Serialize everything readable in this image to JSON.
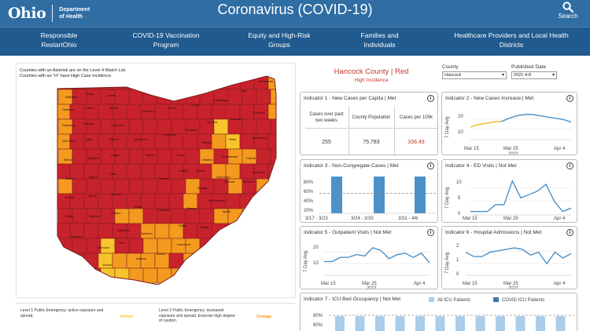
{
  "header": {
    "logo_text": "Ohio",
    "dept_text": "Department\nof Health",
    "site_title": "Coronavirus (COVID-19)",
    "search_label": "Search"
  },
  "nav": [
    {
      "label": "Responsible\nRestartOhio"
    },
    {
      "label": "COVID-19 Vaccination\nProgram"
    },
    {
      "label": "Equity and High-Risk\nGroups"
    },
    {
      "label": "Families and\nIndividuals"
    },
    {
      "label": "Healthcare Providers and Local Health\nDistricts"
    }
  ],
  "map": {
    "note_line1": "Counties with an Asterisk are on the Level 4 Watch List.",
    "note_line2": "Counties with an \"H\" have High Case Incidence.",
    "colors": {
      "red": "#c8222d",
      "orange": "#f39a1f",
      "yellow": "#f7c52b",
      "border": "#7a1a1a"
    }
  },
  "legend": {
    "level1_text": "Level 1 Public Emergency: active exposure and spread.",
    "level1_color_label": "Yellow",
    "level2_text": "Level 2 Public Emergency: increased exposure and spread. Exercise high degree of caution.",
    "level2_color_label": "Orange"
  },
  "county": {
    "title": "Hancock County | Red",
    "subtitle": "High Incidence"
  },
  "filters": {
    "county_label": "County",
    "county_value": "Hancock",
    "published_label": "Published Date",
    "published_value": "2021-4-8"
  },
  "indicators": {
    "ind1": {
      "title": "Indicator 1 - New Cases per Capita | Met",
      "col1_header": "Cases over past two weeks",
      "col2_header": "County Population",
      "col3_header": "Cases per 100k",
      "col1_value": "255",
      "col2_value": "75,783",
      "col3_value": "336.49",
      "col3_color": "#c0392b"
    },
    "ind2": {
      "title": "Indicator 2 - New Cases Increase | Met",
      "ylabel": "7 Day Avg.",
      "yticks": [
        "20",
        "10"
      ],
      "xticks": [
        "Mar 15",
        "Mar 25",
        "Apr 4"
      ],
      "year": "2021"
    },
    "ind3": {
      "title": "Indicator 3 - Non-Congregate Cases | Met",
      "yticks": [
        "80%",
        "60%",
        "40%",
        "20%"
      ],
      "xticks": [
        "3/17 - 3/23",
        "3/24 - 3/30",
        "3/31 - 4/6"
      ]
    },
    "ind4": {
      "title": "Indicator 4 - ED Visits | Not Met",
      "ylabel": "7 Day Avg.",
      "yticks": [
        "10",
        "5",
        "0"
      ],
      "xticks": [
        "Mar 15",
        "Mar 25",
        "Apr 4"
      ],
      "year": "2021"
    },
    "ind5": {
      "title": "Indicator 5 - Outpatient Visits | Not Met",
      "ylabel": "7 Day Avg.",
      "yticks": [
        "20",
        "10"
      ],
      "xticks": [
        "Mar 15",
        "Mar 25",
        "Apr 4"
      ],
      "year": "2021"
    },
    "ind6": {
      "title": "Indicator 6 - Hospital Admissions | Not Met",
      "ylabel": "7 Day Avg.",
      "yticks": [
        "2",
        "1",
        "0"
      ],
      "xticks": [
        "Mar 15",
        "Mar 25",
        "Apr 4"
      ],
      "year": "2021"
    },
    "ind7": {
      "title": "Indicator 7 - ICU Bed Occupancy | Not Met",
      "legend_all": "All ICU Patients",
      "legend_covid": "COVID ICU Patients",
      "yticks": [
        "80%",
        "60%"
      ]
    }
  },
  "chart_data": [
    {
      "type": "line",
      "title": "Indicator 2 - New Cases Increase | Met",
      "ylabel": "7 Day Avg.",
      "ylim": [
        0,
        25
      ],
      "x": [
        "Mar 11",
        "Mar 13",
        "Mar 15",
        "Mar 17",
        "Mar 19",
        "Mar 21",
        "Mar 23",
        "Mar 25",
        "Mar 27",
        "Mar 29",
        "Mar 31",
        "Apr 2",
        "Apr 4",
        "Apr 6"
      ],
      "series": [
        {
          "name": "baseline (yellow)",
          "values": [
            10,
            12,
            13,
            14,
            14.5,
            null,
            null,
            null,
            null,
            null,
            null,
            null,
            null,
            null
          ]
        },
        {
          "name": "7 day avg",
          "values": [
            null,
            null,
            null,
            null,
            14.5,
            17,
            19,
            20,
            20,
            19,
            18,
            17,
            16,
            14
          ]
        }
      ],
      "xlabel": "2021"
    },
    {
      "type": "bar",
      "title": "Indicator 3 - Non-Congregate Cases | Met",
      "categories": [
        "3/17 - 3/23",
        "3/24 - 3/30",
        "3/31 - 4/6"
      ],
      "values": [
        92,
        92,
        92
      ],
      "threshold": 50,
      "ylim": [
        0,
        100
      ]
    },
    {
      "type": "line",
      "title": "Indicator 4 - ED Visits | Not Met",
      "ylabel": "7 Day Avg.",
      "ylim": [
        0,
        12
      ],
      "x": [
        "Mar 13",
        "Mar 15",
        "Mar 17",
        "Mar 19",
        "Mar 21",
        "Mar 23",
        "Mar 25",
        "Mar 27",
        "Mar 29",
        "Mar 31",
        "Apr 2",
        "Apr 4",
        "Apr 6"
      ],
      "series": [
        {
          "name": "7 day avg",
          "values": [
            1,
            1,
            1,
            3,
            3,
            10,
            5,
            6,
            7,
            9,
            4,
            1,
            2
          ]
        }
      ],
      "xlabel": "2021"
    },
    {
      "type": "line",
      "title": "Indicator 5 - Outpatient Visits | Not Met",
      "ylabel": "7 Day Avg.",
      "ylim": [
        0,
        25
      ],
      "x": [
        "Mar 11",
        "Mar 13",
        "Mar 15",
        "Mar 17",
        "Mar 19",
        "Mar 21",
        "Mar 23",
        "Mar 25",
        "Mar 27",
        "Mar 29",
        "Mar 31",
        "Apr 2",
        "Apr 4",
        "Apr 6"
      ],
      "series": [
        {
          "name": "7 day avg",
          "values": [
            10,
            10,
            13,
            13,
            15,
            14,
            20,
            18,
            12,
            15,
            16,
            13,
            16,
            9
          ]
        }
      ],
      "xlabel": "2021"
    },
    {
      "type": "line",
      "title": "Indicator 6 - Hospital Admissions | Not Met",
      "ylabel": "7 Day Avg.",
      "ylim": [
        0,
        2.5
      ],
      "x": [
        "Mar 11",
        "Mar 13",
        "Mar 15",
        "Mar 17",
        "Mar 19",
        "Mar 21",
        "Mar 23",
        "Mar 25",
        "Mar 27",
        "Mar 29",
        "Mar 31",
        "Apr 2",
        "Apr 4",
        "Apr 6"
      ],
      "series": [
        {
          "name": "7 day avg",
          "values": [
            1.6,
            1.3,
            1.3,
            1.6,
            1.7,
            1.8,
            1.9,
            1.8,
            1.4,
            1.6,
            0.8,
            1.6,
            1.2,
            1.5
          ]
        }
      ],
      "xlabel": "2021"
    },
    {
      "type": "bar",
      "title": "Indicator 7 - ICU Bed Occupancy | Not Met",
      "categories": [
        "1",
        "2",
        "3",
        "4",
        "5",
        "6",
        "7",
        "8",
        "9",
        "10",
        "11",
        "12"
      ],
      "series": [
        {
          "name": "All ICU Patients",
          "values": [
            70,
            70,
            70,
            70,
            70,
            70,
            70,
            70,
            70,
            70,
            70,
            70
          ]
        }
      ],
      "ylim": [
        0,
        90
      ]
    }
  ]
}
